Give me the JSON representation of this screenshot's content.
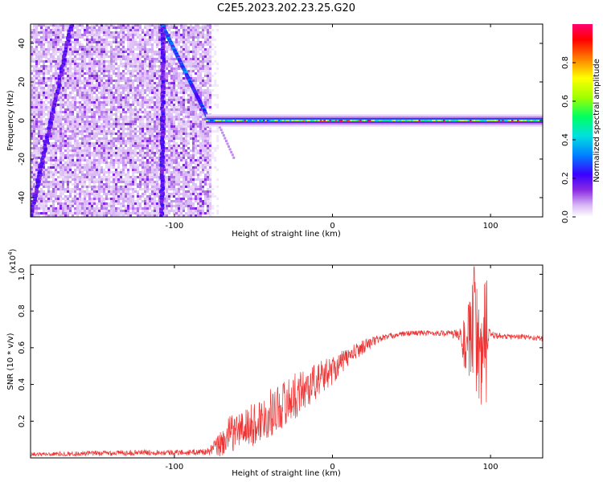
{
  "chart_data": [
    {
      "type": "heatmap",
      "title": "C2E5.2023.202.23.25.G20",
      "xlabel": "Height of straight line (km)",
      "ylabel": "Frequency (Hz)",
      "xlim": [
        -191,
        133
      ],
      "ylim": [
        -50,
        50
      ],
      "x_ticks": [
        -100,
        0,
        100
      ],
      "y_ticks": [
        -40,
        -20,
        0,
        20,
        40
      ],
      "colorbar": {
        "label": "Normalized spectral amplitude",
        "range": [
          0,
          1
        ],
        "ticks": [
          0.0,
          0.2,
          0.4,
          0.6,
          0.8
        ],
        "colormap": [
          "#ffffff",
          "#d9b8f5",
          "#8a2be2",
          "#3a00ff",
          "#0080ff",
          "#00e0e0",
          "#00ff60",
          "#a0ff00",
          "#ffff00",
          "#ff8000",
          "#ff0000",
          "#ff0070"
        ]
      },
      "features": {
        "noise_region_x": [
          -191,
          -78
        ],
        "carrier_start_x": -80,
        "carrier_frequency": 0,
        "diagonal_streaks_x_at_top": [
          -165,
          -107
        ],
        "diagonal_streaks_x_at_bottom": [
          -191,
          -108
        ]
      }
    },
    {
      "type": "line",
      "xlabel": "Height of straight line (km)",
      "ylabel": "SNR (10 * v/v)",
      "y_multiplier": "(x10",
      "y_exponent": "4",
      "y_multiplier_close": ")",
      "xlim": [
        -191,
        133
      ],
      "ylim": [
        0,
        1.05
      ],
      "x_ticks": [
        -100,
        0,
        100
      ],
      "y_ticks": [
        0.2,
        0.4,
        0.6,
        0.8,
        1.0
      ],
      "y_tick_labels": [
        "0.2",
        "0.4",
        "0.6",
        "0.8",
        "1.0"
      ],
      "color": "#ee3333",
      "series": [
        {
          "x": [
            -191,
            -150,
            -120,
            -90,
            -78,
            -70,
            -65,
            -60,
            -50,
            -40,
            -30,
            -20,
            -10,
            0,
            10,
            20,
            30,
            40,
            50,
            60,
            70,
            80,
            85,
            90,
            95,
            100,
            110,
            120,
            133
          ],
          "values": [
            0.02,
            0.025,
            0.03,
            0.03,
            0.035,
            0.08,
            0.13,
            0.15,
            0.18,
            0.24,
            0.3,
            0.36,
            0.42,
            0.48,
            0.55,
            0.61,
            0.65,
            0.67,
            0.68,
            0.68,
            0.68,
            0.67,
            0.6,
            0.72,
            0.6,
            0.67,
            0.66,
            0.66,
            0.65
          ],
          "noise_amp": [
            0.01,
            0.015,
            0.015,
            0.015,
            0.02,
            0.08,
            0.1,
            0.1,
            0.12,
            0.13,
            0.13,
            0.12,
            0.1,
            0.08,
            0.05,
            0.04,
            0.02,
            0.015,
            0.015,
            0.015,
            0.015,
            0.03,
            0.2,
            0.28,
            0.2,
            0.02,
            0.015,
            0.015,
            0.015
          ]
        }
      ]
    }
  ]
}
